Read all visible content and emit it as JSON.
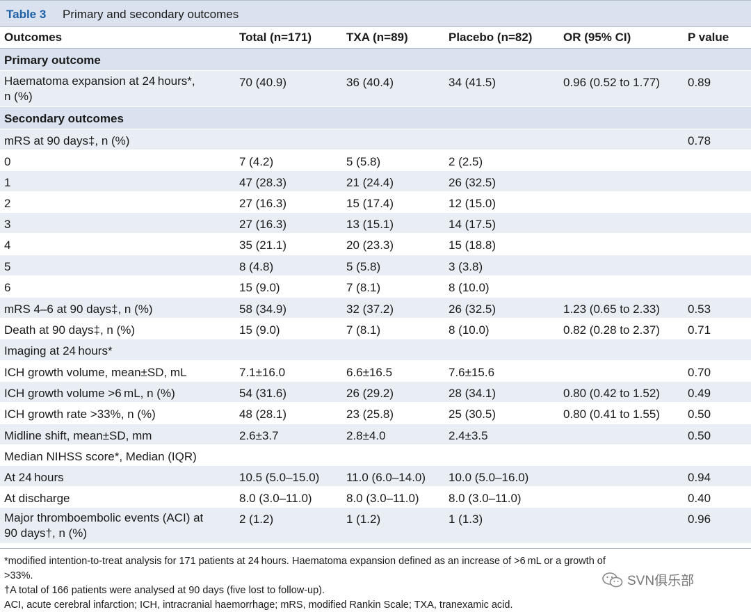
{
  "table": {
    "number": "Table 3",
    "title": "Primary and secondary outcomes",
    "headers": [
      "Outcomes",
      "Total (n=171)",
      "TXA (n=89)",
      "Placebo (n=82)",
      "OR (95% CI)",
      "P value"
    ],
    "rows": [
      {
        "type": "section",
        "cells": [
          "Primary outcome",
          "",
          "",
          "",
          "",
          ""
        ]
      },
      {
        "type": "data",
        "cells": [
          "Haematoma expansion at 24 hours*,\nn (%)",
          "70 (40.9)",
          "36 (40.4)",
          "34 (41.5)",
          "0.96 (0.52 to 1.77)",
          "0.89"
        ]
      },
      {
        "type": "section",
        "cells": [
          "Secondary outcomes",
          "",
          "",
          "",
          "",
          ""
        ]
      },
      {
        "type": "data",
        "cells": [
          "mRS at 90 days‡, n (%)",
          "",
          "",
          "",
          "",
          "0.78"
        ]
      },
      {
        "type": "data",
        "cells": [
          "0",
          "7 (4.2)",
          "5 (5.8)",
          "2 (2.5)",
          "",
          ""
        ]
      },
      {
        "type": "data",
        "cells": [
          "1",
          "47 (28.3)",
          "21 (24.4)",
          "26 (32.5)",
          "",
          ""
        ]
      },
      {
        "type": "data",
        "cells": [
          "2",
          "27 (16.3)",
          "15 (17.4)",
          "12 (15.0)",
          "",
          ""
        ]
      },
      {
        "type": "data",
        "cells": [
          "3",
          "27 (16.3)",
          "13 (15.1)",
          "14 (17.5)",
          "",
          ""
        ]
      },
      {
        "type": "data",
        "cells": [
          "4",
          "35 (21.1)",
          "20 (23.3)",
          "15 (18.8)",
          "",
          ""
        ]
      },
      {
        "type": "data",
        "cells": [
          "5",
          "8 (4.8)",
          "5 (5.8)",
          "3 (3.8)",
          "",
          ""
        ]
      },
      {
        "type": "data",
        "cells": [
          "6",
          "15 (9.0)",
          "7 (8.1)",
          "8 (10.0)",
          "",
          ""
        ]
      },
      {
        "type": "data",
        "cells": [
          "mRS 4–6 at 90 days‡, n (%)",
          "58 (34.9)",
          "32 (37.2)",
          "26 (32.5)",
          "1.23 (0.65 to 2.33)",
          "0.53"
        ]
      },
      {
        "type": "data",
        "cells": [
          "Death at 90 days‡, n (%)",
          "15 (9.0)",
          "7 (8.1)",
          "8 (10.0)",
          "0.82 (0.28 to 2.37)",
          "0.71"
        ]
      },
      {
        "type": "data",
        "cells": [
          "Imaging at 24 hours*",
          "",
          "",
          "",
          "",
          ""
        ]
      },
      {
        "type": "data",
        "cells": [
          "ICH growth volume, mean±SD, mL",
          "7.1±16.0",
          "6.6±16.5",
          "7.6±15.6",
          "",
          "0.70"
        ]
      },
      {
        "type": "data",
        "cells": [
          "ICH growth volume >6 mL, n (%)",
          "54 (31.6)",
          "26 (29.2)",
          "28 (34.1)",
          "0.80 (0.42 to 1.52)",
          "0.49"
        ]
      },
      {
        "type": "data",
        "cells": [
          "ICH growth rate >33%, n (%)",
          "48 (28.1)",
          "23 (25.8)",
          "25 (30.5)",
          "0.80 (0.41 to 1.55)",
          "0.50"
        ]
      },
      {
        "type": "data",
        "cells": [
          "Midline shift, mean±SD, mm",
          "2.6±3.7",
          "2.8±4.0",
          "2.4±3.5",
          "",
          "0.50"
        ]
      },
      {
        "type": "data",
        "cells": [
          "Median NIHSS score*, Median (IQR)",
          "",
          "",
          "",
          "",
          ""
        ]
      },
      {
        "type": "data",
        "cells": [
          "At 24 hours",
          "10.5 (5.0–15.0)",
          "11.0 (6.0–14.0)",
          "10.0 (5.0–16.0)",
          "",
          "0.94"
        ]
      },
      {
        "type": "data",
        "cells": [
          "At discharge",
          "8.0 (3.0–11.0)",
          "8.0 (3.0–11.0)",
          "8.0 (3.0–11.0)",
          "",
          "0.40"
        ]
      },
      {
        "type": "data",
        "cells": [
          "Major thromboembolic events (ACI) at\n90 days†, n (%)",
          "2 (1.2)",
          "1 (1.2)",
          "1 (1.3)",
          "",
          "0.96"
        ]
      }
    ]
  },
  "footnotes": [
    "*modified intention-to-treat analysis for 171 patients at 24 hours. Haematoma expansion defined as an increase of >6 mL or a growth of",
    ">33%.",
    "†A total of 166 patients were analysed at 90 days (five lost to follow-up).",
    "ACI, acute cerebral infarction; ICH, intracranial haemorrhage; mRS, modified Rankin Scale; TXA, tranexamic acid."
  ],
  "watermark": {
    "text": "SVN俱乐部",
    "icon": "wechat-icon"
  },
  "colors": {
    "accent": "#1f5fa8",
    "header_band": "#d9e2ee",
    "row_alt": "#e9eef5"
  }
}
